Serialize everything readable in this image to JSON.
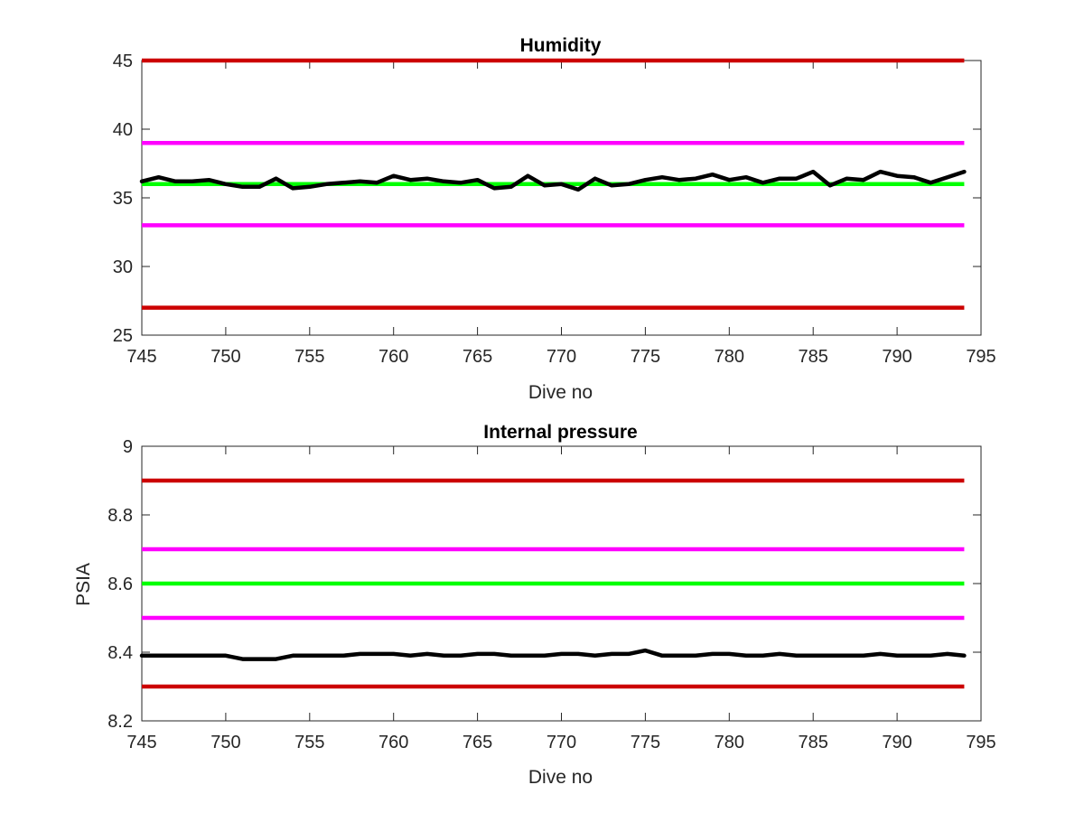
{
  "chart_data": [
    {
      "type": "line",
      "title": "Humidity",
      "xlabel": "Dive no",
      "ylabel": "",
      "xlim": [
        745,
        795
      ],
      "ylim": [
        25,
        45
      ],
      "xticks": [
        "745",
        "750",
        "755",
        "760",
        "765",
        "770",
        "775",
        "780",
        "785",
        "790",
        "795"
      ],
      "yticks": [
        "25",
        "30",
        "35",
        "40",
        "45"
      ],
      "grid": false,
      "reference_lines": [
        {
          "y": 45,
          "color": "#cc0000"
        },
        {
          "y": 39,
          "color": "#ff00ff"
        },
        {
          "y": 36,
          "color": "#00ff00"
        },
        {
          "y": 33,
          "color": "#ff00ff"
        },
        {
          "y": 27,
          "color": "#cc0000"
        }
      ],
      "series": [
        {
          "color": "#000000",
          "x": [
            745,
            746,
            747,
            748,
            749,
            750,
            751,
            752,
            753,
            754,
            755,
            756,
            757,
            758,
            759,
            760,
            761,
            762,
            763,
            764,
            765,
            766,
            767,
            768,
            769,
            770,
            771,
            772,
            773,
            774,
            775,
            776,
            777,
            778,
            779,
            780,
            781,
            782,
            783,
            784,
            785,
            786,
            787,
            788,
            789,
            790,
            791,
            792,
            793,
            794
          ],
          "values": [
            36.2,
            36.5,
            36.2,
            36.2,
            36.3,
            36.0,
            35.8,
            35.8,
            36.4,
            35.7,
            35.8,
            36.0,
            36.1,
            36.2,
            36.1,
            36.6,
            36.3,
            36.4,
            36.2,
            36.1,
            36.3,
            35.7,
            35.8,
            36.6,
            35.9,
            36.0,
            35.6,
            36.4,
            35.9,
            36.0,
            36.3,
            36.5,
            36.3,
            36.4,
            36.7,
            36.3,
            36.5,
            36.1,
            36.4,
            36.4,
            36.9,
            35.9,
            36.4,
            36.3,
            36.9,
            36.6,
            36.5,
            36.1,
            36.5,
            36.9
          ]
        }
      ]
    },
    {
      "type": "line",
      "title": "Internal pressure",
      "xlabel": "Dive no",
      "ylabel": "PSIA",
      "xlim": [
        745,
        795
      ],
      "ylim": [
        8.2,
        9.0
      ],
      "xticks": [
        "745",
        "750",
        "755",
        "760",
        "765",
        "770",
        "775",
        "780",
        "785",
        "790",
        "795"
      ],
      "yticks": [
        "8.2",
        "8.4",
        "8.6",
        "8.8",
        "9"
      ],
      "grid": false,
      "reference_lines": [
        {
          "y": 8.9,
          "color": "#cc0000"
        },
        {
          "y": 8.7,
          "color": "#ff00ff"
        },
        {
          "y": 8.6,
          "color": "#00ff00"
        },
        {
          "y": 8.5,
          "color": "#ff00ff"
        },
        {
          "y": 8.3,
          "color": "#cc0000"
        }
      ],
      "series": [
        {
          "color": "#000000",
          "x": [
            745,
            746,
            747,
            748,
            749,
            750,
            751,
            752,
            753,
            754,
            755,
            756,
            757,
            758,
            759,
            760,
            761,
            762,
            763,
            764,
            765,
            766,
            767,
            768,
            769,
            770,
            771,
            772,
            773,
            774,
            775,
            776,
            777,
            778,
            779,
            780,
            781,
            782,
            783,
            784,
            785,
            786,
            787,
            788,
            789,
            790,
            791,
            792,
            793,
            794
          ],
          "values": [
            8.39,
            8.39,
            8.39,
            8.39,
            8.39,
            8.39,
            8.38,
            8.38,
            8.38,
            8.39,
            8.39,
            8.39,
            8.39,
            8.395,
            8.395,
            8.395,
            8.39,
            8.395,
            8.39,
            8.39,
            8.395,
            8.395,
            8.39,
            8.39,
            8.39,
            8.395,
            8.395,
            8.39,
            8.395,
            8.395,
            8.405,
            8.39,
            8.39,
            8.39,
            8.395,
            8.395,
            8.39,
            8.39,
            8.395,
            8.39,
            8.39,
            8.39,
            8.39,
            8.39,
            8.395,
            8.39,
            8.39,
            8.39,
            8.395,
            8.39
          ]
        }
      ]
    }
  ]
}
